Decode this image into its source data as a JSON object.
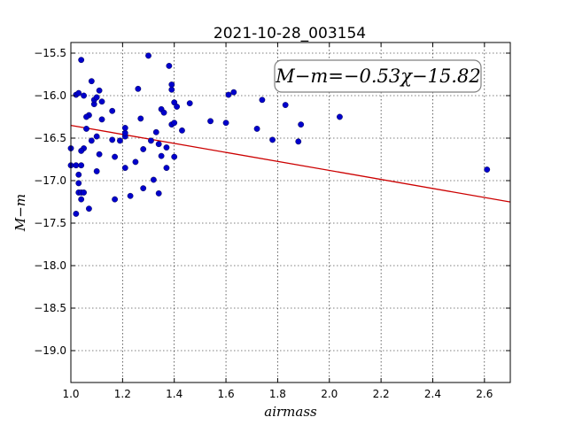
{
  "chart_data": {
    "type": "scatter",
    "title": "2021-10-28_003154",
    "xlabel": "airmass",
    "ylabel": "M−m",
    "xlim": [
      1.0,
      2.7
    ],
    "ylim": [
      -19.375,
      -15.375
    ],
    "y_inverted": true,
    "grid": true,
    "annotation": "M−m=−0.53χ−15.82",
    "annotation_placement": "top-right",
    "x_ticks": [
      "1.0",
      "1.2",
      "1.4",
      "1.6",
      "1.8",
      "2.0",
      "2.2",
      "2.4",
      "2.6"
    ],
    "y_ticks": [
      "−15.5",
      "−16.0",
      "−16.5",
      "−17.0",
      "−17.5",
      "−18.0",
      "−18.5",
      "−19.0"
    ],
    "colors": {
      "points": "#0000cc",
      "fit": "#cc0000"
    },
    "fit": {
      "slope": -0.53,
      "intercept": -15.82
    },
    "points": [
      [
        1.0,
        -16.62
      ],
      [
        1.0,
        -16.82
      ],
      [
        1.02,
        -15.99
      ],
      [
        1.03,
        -15.97
      ],
      [
        1.04,
        -15.58
      ],
      [
        1.05,
        -16.0
      ],
      [
        1.02,
        -16.82
      ],
      [
        1.04,
        -16.82
      ],
      [
        1.03,
        -16.93
      ],
      [
        1.03,
        -17.03
      ],
      [
        1.03,
        -17.14
      ],
      [
        1.04,
        -17.14
      ],
      [
        1.05,
        -17.14
      ],
      [
        1.04,
        -17.22
      ],
      [
        1.02,
        -17.39
      ],
      [
        1.06,
        -16.39
      ],
      [
        1.07,
        -16.23
      ],
      [
        1.06,
        -16.25
      ],
      [
        1.05,
        -16.62
      ],
      [
        1.04,
        -16.65
      ],
      [
        1.08,
        -16.53
      ],
      [
        1.09,
        -16.1
      ],
      [
        1.09,
        -16.05
      ],
      [
        1.1,
        -16.02
      ],
      [
        1.08,
        -15.83
      ],
      [
        1.11,
        -15.94
      ],
      [
        1.12,
        -16.07
      ],
      [
        1.12,
        -16.28
      ],
      [
        1.1,
        -16.48
      ],
      [
        1.07,
        -17.33
      ],
      [
        1.1,
        -16.89
      ],
      [
        1.11,
        -16.69
      ],
      [
        1.16,
        -16.18
      ],
      [
        1.16,
        -16.52
      ],
      [
        1.19,
        -16.53
      ],
      [
        1.21,
        -16.48
      ],
      [
        1.21,
        -16.44
      ],
      [
        1.21,
        -16.38
      ],
      [
        1.17,
        -16.72
      ],
      [
        1.21,
        -16.85
      ],
      [
        1.17,
        -17.22
      ],
      [
        1.23,
        -17.18
      ],
      [
        1.25,
        -16.78
      ],
      [
        1.26,
        -15.92
      ],
      [
        1.27,
        -16.27
      ],
      [
        1.28,
        -16.63
      ],
      [
        1.28,
        -17.09
      ],
      [
        1.3,
        -15.53
      ],
      [
        1.31,
        -16.53
      ],
      [
        1.32,
        -16.99
      ],
      [
        1.33,
        -16.43
      ],
      [
        1.34,
        -16.57
      ],
      [
        1.34,
        -17.15
      ],
      [
        1.35,
        -16.16
      ],
      [
        1.35,
        -16.71
      ],
      [
        1.36,
        -16.2
      ],
      [
        1.37,
        -16.85
      ],
      [
        1.37,
        -16.61
      ],
      [
        1.38,
        -15.65
      ],
      [
        1.39,
        -15.87
      ],
      [
        1.39,
        -15.93
      ],
      [
        1.39,
        -16.34
      ],
      [
        1.4,
        -16.32
      ],
      [
        1.4,
        -16.08
      ],
      [
        1.41,
        -16.13
      ],
      [
        1.4,
        -16.72
      ],
      [
        1.43,
        -16.41
      ],
      [
        1.46,
        -16.09
      ],
      [
        1.54,
        -16.3
      ],
      [
        1.6,
        -16.32
      ],
      [
        1.61,
        -15.99
      ],
      [
        1.63,
        -15.96
      ],
      [
        1.72,
        -16.39
      ],
      [
        1.74,
        -16.05
      ],
      [
        1.78,
        -16.52
      ],
      [
        1.83,
        -16.11
      ],
      [
        1.88,
        -16.54
      ],
      [
        1.89,
        -16.34
      ],
      [
        2.04,
        -16.25
      ],
      [
        2.61,
        -16.87
      ]
    ]
  }
}
